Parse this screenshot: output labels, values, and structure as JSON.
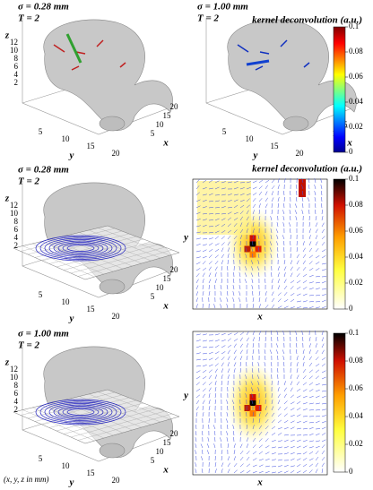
{
  "panels": [
    {
      "sigma": "σ = 0.28 mm",
      "t": "T = 2",
      "z_label": "z",
      "y_label": "y",
      "x_label": "x",
      "z_ticks": [
        12,
        10,
        8,
        6,
        4,
        2
      ],
      "y_ticks": [
        5,
        10,
        15,
        20
      ],
      "x_ticks": [
        5,
        10,
        15,
        20
      ]
    },
    {
      "sigma": "σ = 1.00 mm",
      "t": "T = 2",
      "y_label": "y",
      "x_label": "x",
      "y_ticks": [
        5,
        10,
        15,
        20
      ],
      "x_ticks": [
        10,
        15
      ]
    },
    {
      "sigma": "σ = 0.28 mm",
      "t": "T = 2",
      "z_label": "z",
      "y_label": "y",
      "x_label": "x",
      "z_ticks": [
        12,
        10,
        8,
        6,
        4,
        2
      ],
      "y_ticks": [
        5,
        10,
        15,
        20
      ],
      "x_ticks": [
        5,
        10,
        15,
        20
      ]
    },
    {
      "sigma": "σ = 1.00 mm",
      "t": "T = 2",
      "z_label": "z",
      "y_label": "y",
      "x_label": "x",
      "z_ticks": [
        12,
        10,
        8,
        6,
        4,
        2
      ],
      "y_ticks": [
        5,
        10,
        15,
        20
      ],
      "x_ticks": [
        5,
        10,
        15,
        20
      ]
    }
  ],
  "heatmaps": [
    {
      "y_label": "y",
      "x_label": "x"
    },
    {
      "y_label": "y",
      "x_label": "x"
    }
  ],
  "colorbars": [
    {
      "title": "kernel  deconvolution (a.u.)",
      "ticks": [
        0.1,
        0.08,
        0.06,
        0.04,
        0.02,
        0
      ]
    },
    {
      "title": "kernel  deconvolution (a.u.)",
      "ticks": [
        0.1,
        0.08,
        0.06,
        0.04,
        0.02,
        0
      ]
    },
    {
      "ticks": [
        0.1,
        0.08,
        0.06,
        0.04,
        0.02,
        0
      ]
    }
  ],
  "footnote": "(x, y, z in mm)"
}
